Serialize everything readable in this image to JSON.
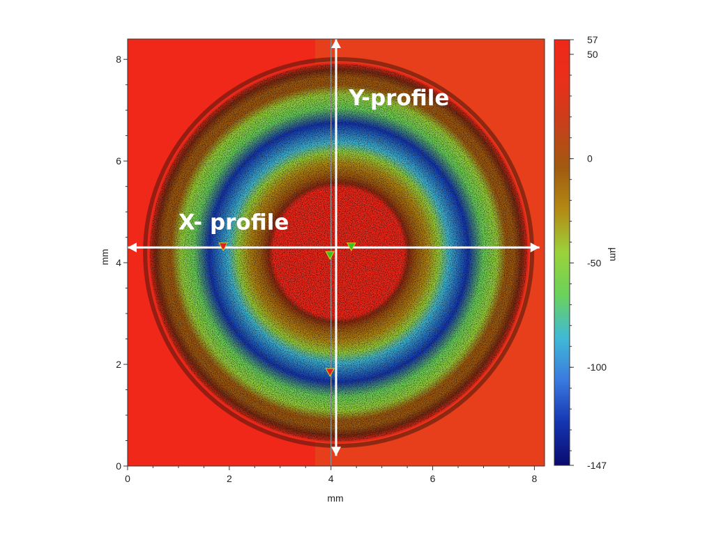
{
  "chart_data": {
    "type": "heatmap",
    "title": "",
    "xlabel": "mm",
    "ylabel": "mm",
    "xlim": [
      0,
      8.2
    ],
    "ylim": [
      0,
      8.4
    ],
    "x_ticks": [
      0,
      2,
      4,
      6,
      8
    ],
    "y_ticks": [
      0,
      2,
      4,
      6,
      8
    ],
    "colorbar": {
      "label": "µm",
      "min": -147,
      "max": 57,
      "ticks": [
        57,
        50,
        0,
        -50,
        -100,
        -147
      ],
      "colors": [
        "#0a0a6e",
        "#1535b0",
        "#3a7ae0",
        "#41b9d6",
        "#6ad25b",
        "#9bd23a",
        "#b48a14",
        "#a05a10",
        "#c8401a",
        "#e8301a",
        "#f0281a"
      ]
    },
    "surface": {
      "background_value": 50,
      "ring_center": [
        4.15,
        4.2
      ],
      "inner_hole_radius": 1.3,
      "outer_radius": 3.75,
      "min_depth_value": -147
    },
    "annotations": [
      {
        "text": "Y-profile",
        "at": [
          4.35,
          7.1
        ]
      },
      {
        "text": "X- profile",
        "at": [
          1.0,
          4.65
        ]
      }
    ],
    "profile_lines": [
      {
        "name": "X-profile",
        "from": [
          0.0,
          4.3
        ],
        "to": [
          8.1,
          4.3
        ]
      },
      {
        "name": "Y-profile",
        "from": [
          4.1,
          0.2
        ],
        "to": [
          4.1,
          8.4
        ]
      }
    ],
    "markers": [
      {
        "x": 1.88,
        "y": 4.32,
        "color": "#e02020"
      },
      {
        "x": 3.98,
        "y": 4.15,
        "color": "#40c020"
      },
      {
        "x": 4.4,
        "y": 4.32,
        "color": "#40c020"
      },
      {
        "x": 3.98,
        "y": 1.85,
        "color": "#e02020"
      }
    ],
    "cursor_line_x": 4.0
  }
}
